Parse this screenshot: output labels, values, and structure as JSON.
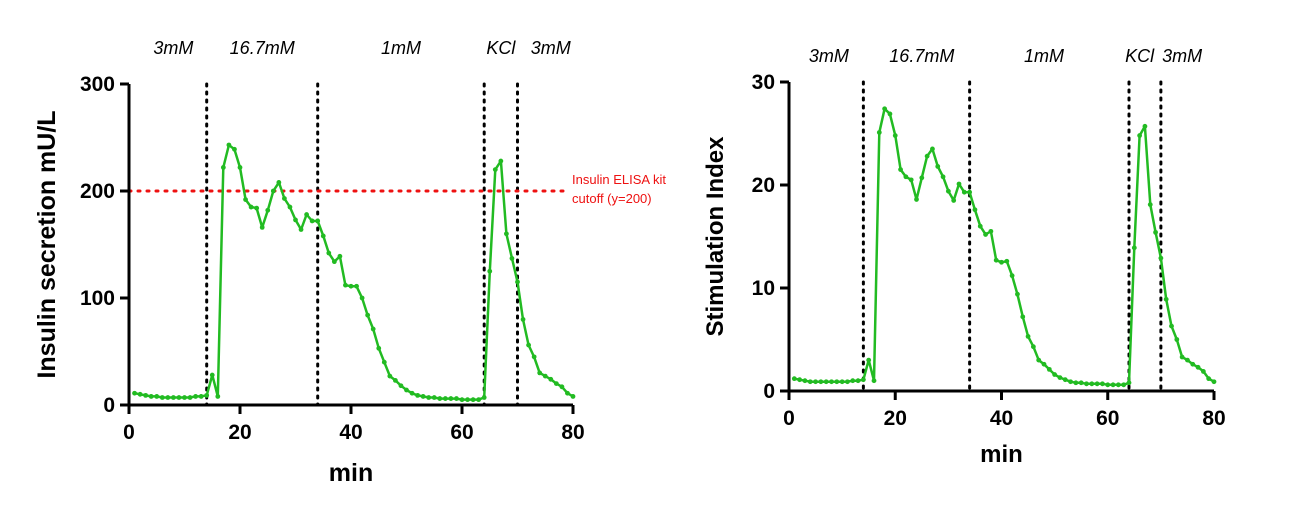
{
  "chart_data": [
    {
      "type": "line",
      "xlabel": "min",
      "ylabel": "Insulin secretion mU/L",
      "xlim": [
        0,
        80
      ],
      "ylim": [
        0,
        300
      ],
      "xticks": [
        "0",
        "20",
        "40",
        "60",
        "80"
      ],
      "yticks": [
        "0",
        "100",
        "200",
        "300"
      ],
      "grid": false,
      "line_color": "#22bb22",
      "phase_boundaries": [
        14,
        34,
        64,
        70
      ],
      "phases": [
        {
          "label": "3mM",
          "x": 8
        },
        {
          "label": "16.7mM",
          "x": 24
        },
        {
          "label": "1mM",
          "x": 49
        },
        {
          "label": "KCl",
          "x": 67
        },
        {
          "label": "3mM",
          "x": 76
        }
      ],
      "reference_line": {
        "y": 200,
        "color": "#ee1111",
        "label": [
          "Insulin ELISA kit",
          "cutoff (y=200)"
        ]
      },
      "series": [
        {
          "x": [
            1,
            2,
            3,
            4,
            5,
            6,
            7,
            8,
            9,
            10,
            11,
            12,
            13,
            14,
            15,
            16,
            17,
            18,
            19,
            20,
            21,
            22,
            23,
            24,
            25,
            26,
            27,
            28,
            29,
            30,
            31,
            32,
            33,
            34,
            35,
            36,
            37,
            38,
            39,
            40,
            41,
            42,
            43,
            44,
            45,
            46,
            47,
            48,
            49,
            50,
            51,
            52,
            53,
            54,
            55,
            56,
            57,
            58,
            59,
            60,
            61,
            62,
            63,
            64,
            65,
            66,
            67,
            68,
            69,
            70,
            71,
            72,
            73,
            74,
            75,
            76,
            77,
            78,
            79,
            80
          ],
          "values": [
            11,
            10,
            9,
            8,
            8,
            7,
            7,
            7,
            7,
            7,
            7,
            8,
            8,
            9,
            28,
            8,
            222,
            243,
            239,
            222,
            192,
            185,
            184,
            166,
            182,
            200,
            208,
            193,
            185,
            173,
            164,
            178,
            172,
            172,
            158,
            142,
            134,
            139,
            112,
            111,
            111,
            100,
            84,
            71,
            53,
            40,
            27,
            23,
            18,
            14,
            11,
            9,
            8,
            7,
            7,
            6,
            6,
            6,
            6,
            5,
            5,
            5,
            5,
            7,
            125,
            220,
            228,
            160,
            137,
            115,
            80,
            56,
            45,
            30,
            27,
            24,
            20,
            17,
            11,
            8
          ]
        }
      ]
    },
    {
      "type": "line",
      "xlabel": "min",
      "ylabel": "Stimulation Index",
      "xlim": [
        0,
        80
      ],
      "ylim": [
        0,
        30
      ],
      "xticks": [
        "0",
        "20",
        "40",
        "60",
        "80"
      ],
      "yticks": [
        "0",
        "10",
        "20",
        "30"
      ],
      "grid": false,
      "line_color": "#22bb22",
      "phase_boundaries": [
        14,
        34,
        64,
        70
      ],
      "phases": [
        {
          "label": "3mM",
          "x": 7.5
        },
        {
          "label": "16.7mM",
          "x": 25
        },
        {
          "label": "1mM",
          "x": 48
        },
        {
          "label": "KCl",
          "x": 66
        },
        {
          "label": "3mM",
          "x": 74
        }
      ],
      "series": [
        {
          "x": [
            1,
            2,
            3,
            4,
            5,
            6,
            7,
            8,
            9,
            10,
            11,
            12,
            13,
            14,
            15,
            16,
            17,
            18,
            19,
            20,
            21,
            22,
            23,
            24,
            25,
            26,
            27,
            28,
            29,
            30,
            31,
            32,
            33,
            34,
            35,
            36,
            37,
            38,
            39,
            40,
            41,
            42,
            43,
            44,
            45,
            46,
            47,
            48,
            49,
            50,
            51,
            52,
            53,
            54,
            55,
            56,
            57,
            58,
            59,
            60,
            61,
            62,
            63,
            64,
            65,
            66,
            67,
            68,
            69,
            70,
            71,
            72,
            73,
            74,
            75,
            76,
            77,
            78,
            79,
            80
          ],
          "values": [
            1.2,
            1.1,
            1.0,
            0.9,
            0.9,
            0.9,
            0.9,
            0.9,
            0.9,
            0.9,
            0.9,
            1.0,
            1.0,
            1.1,
            3.0,
            1.0,
            25.1,
            27.4,
            26.9,
            24.8,
            21.5,
            20.8,
            20.5,
            18.6,
            20.7,
            22.8,
            23.5,
            21.8,
            20.8,
            19.4,
            18.5,
            20.1,
            19.3,
            19.3,
            17.6,
            16.0,
            15.2,
            15.5,
            12.7,
            12.5,
            12.6,
            11.2,
            9.4,
            7.2,
            5.3,
            4.3,
            3.0,
            2.6,
            2.1,
            1.6,
            1.3,
            1.1,
            0.9,
            0.8,
            0.8,
            0.7,
            0.7,
            0.7,
            0.7,
            0.6,
            0.6,
            0.6,
            0.6,
            0.8,
            13.9,
            24.8,
            25.7,
            18.1,
            15.4,
            12.9,
            8.9,
            6.3,
            5.0,
            3.3,
            3.0,
            2.6,
            2.3,
            1.9,
            1.2,
            0.9
          ]
        }
      ]
    }
  ]
}
